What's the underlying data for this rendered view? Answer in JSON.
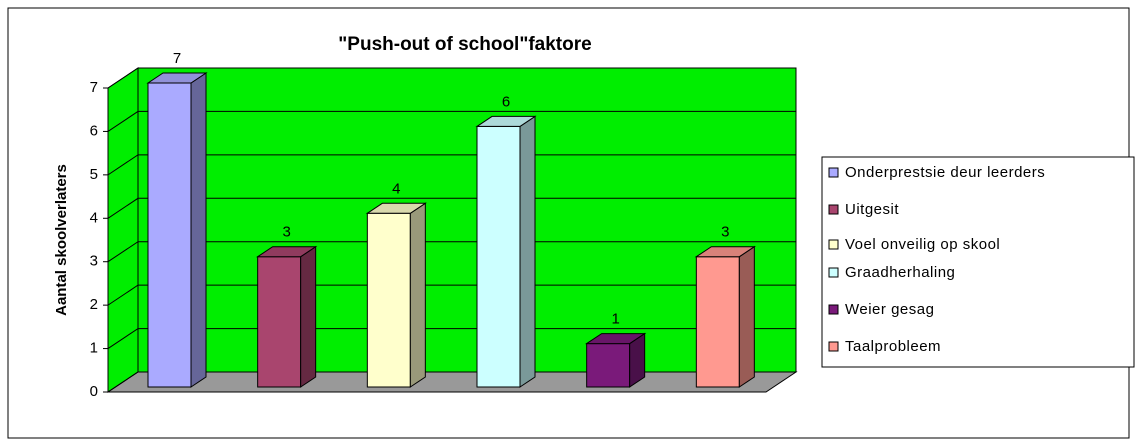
{
  "chart_data": {
    "type": "bar3d",
    "title": "\"Push-out of school\"faktore",
    "ylabel": "Aantal skoolverlaters",
    "categories": [
      null,
      null,
      null,
      null,
      null,
      null
    ],
    "series": [
      {
        "name": "Onderprestsie deur leerders",
        "color": "#aaaaff"
      },
      {
        "name": "Uitgesit",
        "color": "#a9456e"
      },
      {
        "name": "Voel onveilig op skool",
        "color": "#ffffcc"
      },
      {
        "name": "Graadherhaling",
        "color": "#ccffff"
      },
      {
        "name": "Weier gesag",
        "color": "#7a1a7a"
      },
      {
        "name": "Taalprobleem",
        "color": "#ff9990"
      }
    ],
    "values": [
      7,
      3,
      4,
      6,
      1,
      3
    ],
    "ylim": [
      0,
      7
    ],
    "yticks": [
      0,
      1,
      2,
      3,
      4,
      5,
      6,
      7
    ],
    "grid": true,
    "wall_color": "#00ee00",
    "floor_color": "#999999",
    "legend": "right"
  }
}
